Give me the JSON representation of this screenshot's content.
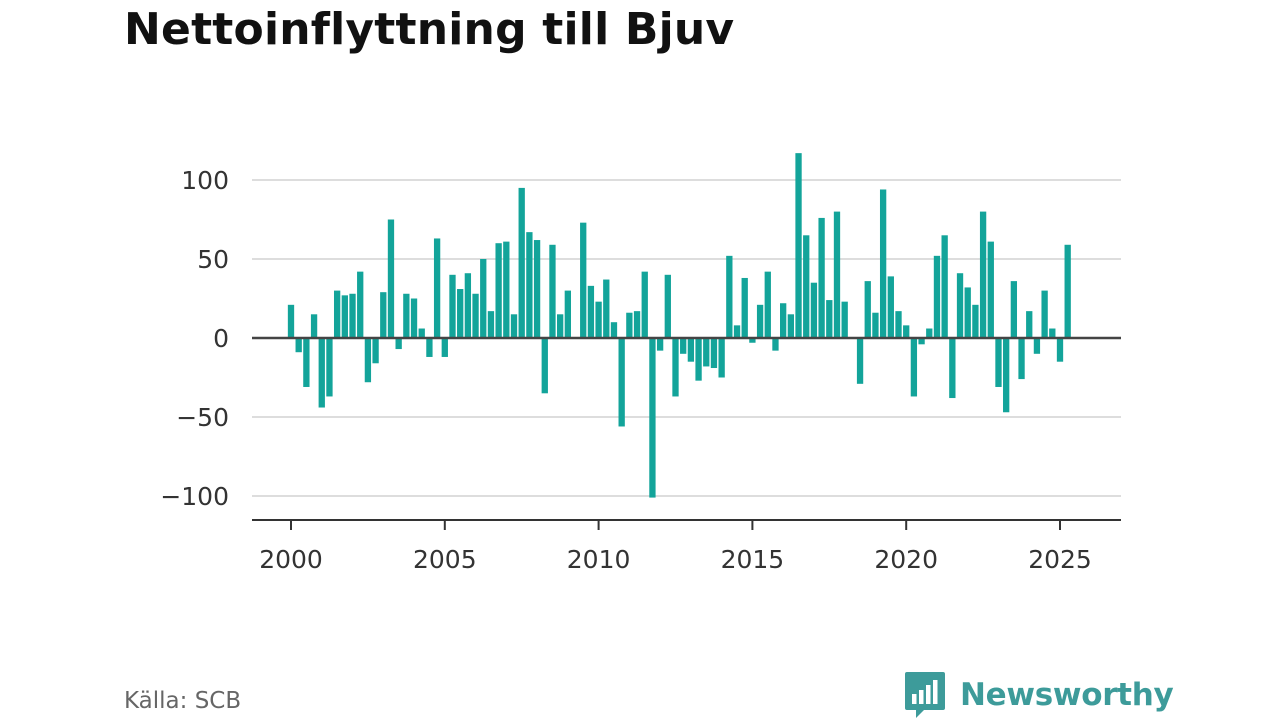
{
  "title": "Nettoinflyttning till Bjuv",
  "source": "Källa: SCB",
  "brand": {
    "name": "Newsworthy",
    "logo_icon": "newsworthy-logo-icon",
    "color": "#3d9b9a"
  },
  "colors": {
    "bar": "#13a49a",
    "baseline": "#444444",
    "grid": "#dddddd"
  },
  "chart_data": {
    "type": "bar",
    "frequency": "quarterly",
    "title": "Nettoinflyttning till Bjuv",
    "xlabel": "",
    "ylabel": "",
    "ylim": [
      -115,
      120
    ],
    "yticks": [
      100,
      50,
      0,
      -50,
      -100
    ],
    "ytick_labels": [
      "100",
      "50",
      "0",
      "−50",
      "−100"
    ],
    "xlim": [
      1999.7,
      2027.1
    ],
    "xticks": [
      2000,
      2005,
      2010,
      2015,
      2020,
      2025
    ],
    "xtick_labels": [
      "2000",
      "2005",
      "2010",
      "2015",
      "2020",
      "2025"
    ],
    "grid": true,
    "legend": "none",
    "x": [
      "2000-Q1",
      "2000-Q2",
      "2000-Q3",
      "2000-Q4",
      "2001-Q1",
      "2001-Q2",
      "2001-Q3",
      "2001-Q4",
      "2002-Q1",
      "2002-Q2",
      "2002-Q3",
      "2002-Q4",
      "2003-Q1",
      "2003-Q2",
      "2003-Q3",
      "2003-Q4",
      "2004-Q1",
      "2004-Q2",
      "2004-Q3",
      "2004-Q4",
      "2005-Q1",
      "2005-Q2",
      "2005-Q3",
      "2005-Q4",
      "2006-Q1",
      "2006-Q2",
      "2006-Q3",
      "2006-Q4",
      "2007-Q1",
      "2007-Q2",
      "2007-Q3",
      "2007-Q4",
      "2008-Q1",
      "2008-Q2",
      "2008-Q3",
      "2008-Q4",
      "2009-Q1",
      "2009-Q2",
      "2009-Q3",
      "2009-Q4",
      "2010-Q1",
      "2010-Q2",
      "2010-Q3",
      "2010-Q4",
      "2011-Q1",
      "2011-Q2",
      "2011-Q3",
      "2011-Q4",
      "2012-Q1",
      "2012-Q2",
      "2012-Q3",
      "2012-Q4",
      "2013-Q1",
      "2013-Q2",
      "2013-Q3",
      "2013-Q4",
      "2014-Q1",
      "2014-Q2",
      "2014-Q3",
      "2014-Q4",
      "2015-Q1",
      "2015-Q2",
      "2015-Q3",
      "2015-Q4",
      "2016-Q1",
      "2016-Q2",
      "2016-Q3",
      "2016-Q4",
      "2017-Q1",
      "2017-Q2",
      "2017-Q3",
      "2017-Q4",
      "2018-Q1",
      "2018-Q2",
      "2018-Q3",
      "2018-Q4",
      "2019-Q1",
      "2019-Q2",
      "2019-Q3",
      "2019-Q4",
      "2020-Q1",
      "2020-Q2",
      "2020-Q3",
      "2020-Q4",
      "2021-Q1",
      "2021-Q2",
      "2021-Q3",
      "2021-Q4",
      "2022-Q1",
      "2022-Q2",
      "2022-Q3",
      "2022-Q4",
      "2023-Q1",
      "2023-Q2",
      "2023-Q3",
      "2023-Q4",
      "2024-Q1",
      "2024-Q2",
      "2024-Q3",
      "2024-Q4",
      "2025-Q1",
      "2025-Q2",
      "2025-Q3"
    ],
    "values": [
      21,
      -9,
      -31,
      15,
      -44,
      -37,
      30,
      27,
      28,
      42,
      -28,
      -16,
      29,
      75,
      -7,
      28,
      25,
      6,
      -12,
      63,
      -12,
      40,
      31,
      41,
      28,
      50,
      17,
      60,
      61,
      15,
      95,
      67,
      62,
      -35,
      59,
      15,
      30,
      0,
      73,
      33,
      23,
      37,
      10,
      -56,
      16,
      17,
      42,
      -101,
      -8,
      40,
      -37,
      -10,
      -15,
      -27,
      -18,
      -19,
      -25,
      52,
      8,
      38,
      -3,
      21,
      42,
      -8,
      22,
      15,
      117,
      65,
      35,
      76,
      24,
      80,
      23,
      0,
      -29,
      36,
      16,
      94,
      39,
      17,
      8,
      -37,
      -4,
      6,
      52,
      65,
      -38,
      41,
      32,
      21,
      80,
      61,
      -31,
      -47,
      36,
      -26,
      17,
      -10,
      30,
      6,
      -15,
      59,
      0
    ]
  }
}
